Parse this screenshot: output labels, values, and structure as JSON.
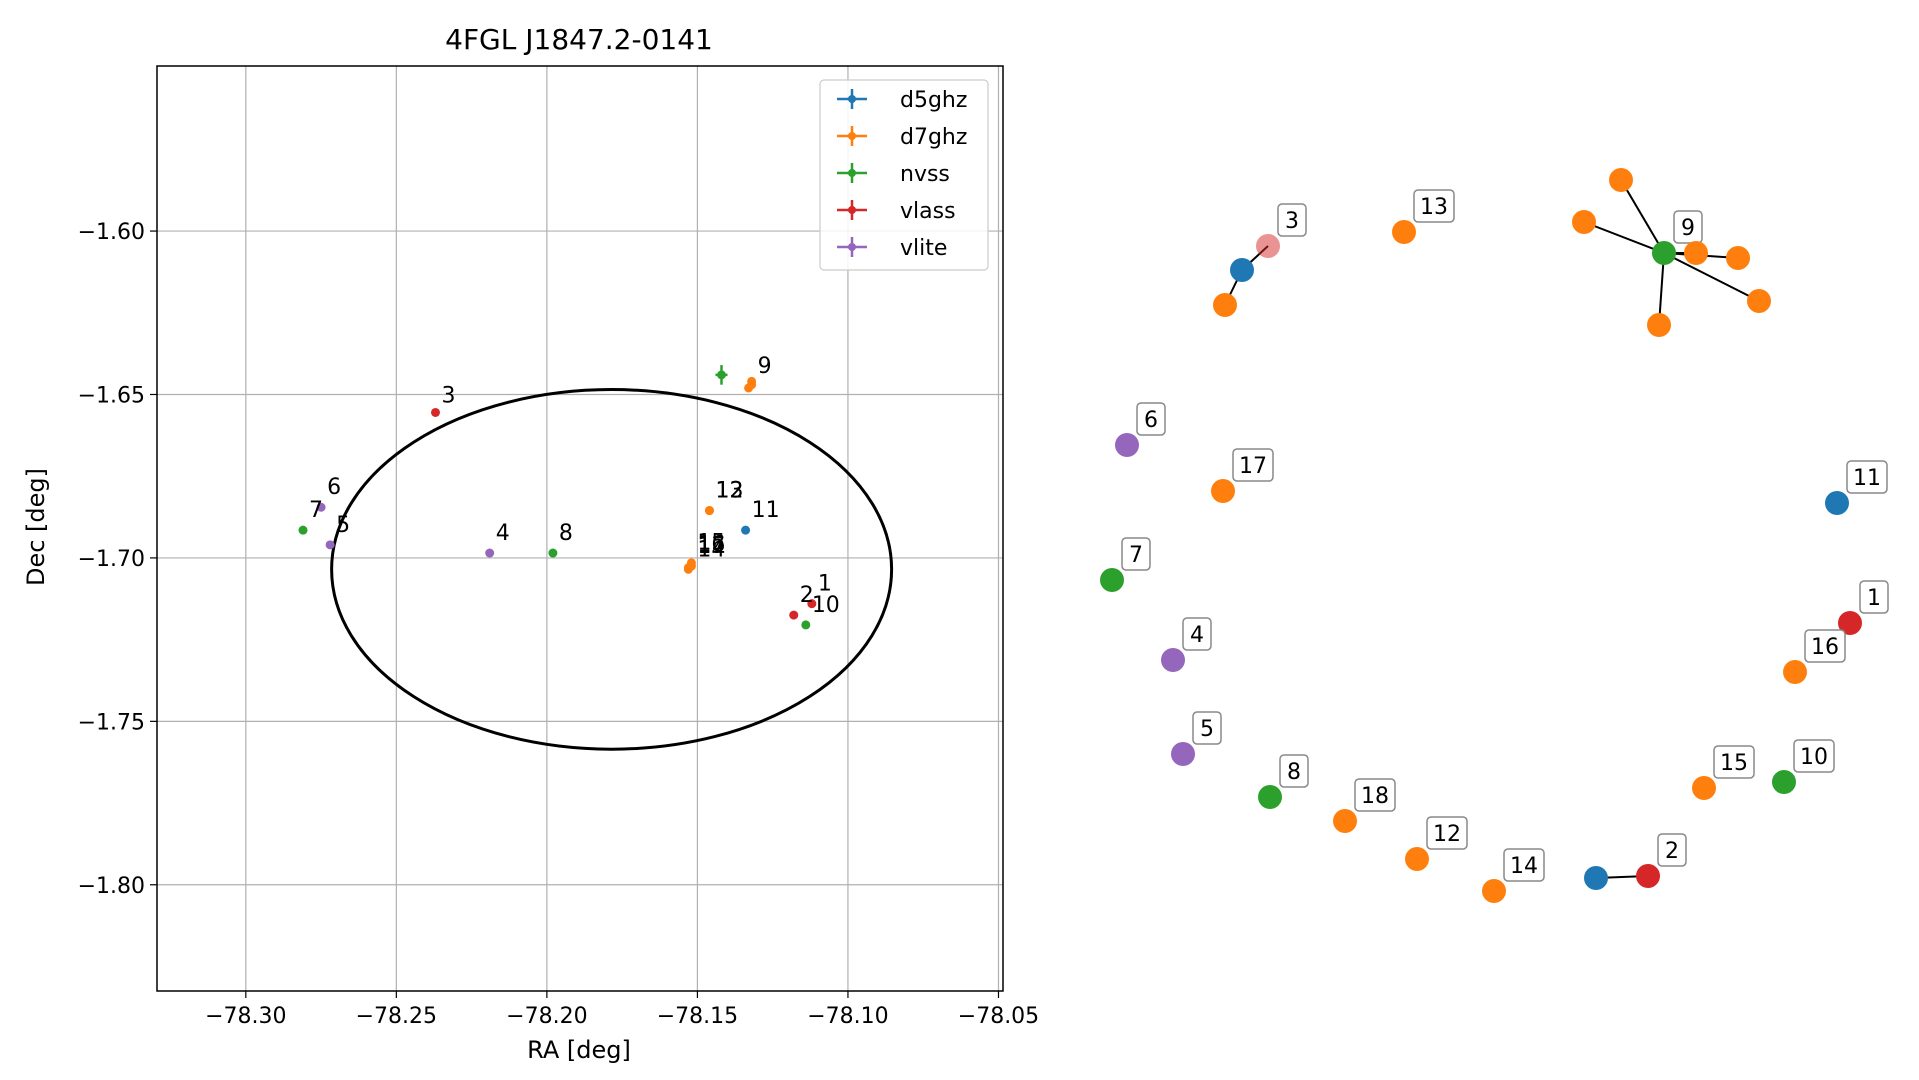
{
  "colors": {
    "d5ghz": "#1f77b4",
    "d7ghz": "#ff7f0e",
    "nvss": "#2ca02c",
    "vlass": "#d62728",
    "vlite": "#9467bd",
    "grid": "#b0b0b0",
    "axis": "#000000"
  },
  "chart_data": [
    {
      "type": "scatter",
      "title": "4FGL J1847.2-0141",
      "xlabel": "RA [deg]",
      "ylabel": "Dec [deg]",
      "xlim": [
        -78.3295,
        -78.0485
      ],
      "ylim": [
        -1.8325,
        -1.5495
      ],
      "xticks": [
        -78.3,
        -78.25,
        -78.2,
        -78.15,
        -78.1,
        -78.05
      ],
      "xtick_labels": [
        "−78.30",
        "−78.25",
        "−78.20",
        "−78.15",
        "−78.10",
        "−78.05"
      ],
      "yticks": [
        -1.6,
        -1.65,
        -1.7,
        -1.75,
        -1.8
      ],
      "ytick_labels": [
        "−1.60",
        "−1.65",
        "−1.70",
        "−1.75",
        "−1.80"
      ],
      "grid": true,
      "legend_position": "top-right",
      "legend": [
        "d5ghz",
        "d7ghz",
        "nvss",
        "vlass",
        "vlite"
      ],
      "ellipse": {
        "center": [
          -78.1785,
          -1.7035
        ],
        "semi_major_deg": 0.093,
        "semi_minor_deg": 0.055
      },
      "series": [
        {
          "name": "d5ghz",
          "points": [
            {
              "id": "11",
              "x": -78.134,
              "y": -1.6915
            }
          ]
        },
        {
          "name": "d7ghz",
          "points": [
            {
              "id": "9",
              "x": -78.132,
              "y": -1.646
            },
            {
              "id": "9",
              "x": -78.132,
              "y": -1.647
            },
            {
              "id": "9",
              "x": -78.133,
              "y": -1.648
            },
            {
              "id": "13",
              "x": -78.146,
              "y": -1.6855
            },
            {
              "id": "12",
              "x": -78.146,
              "y": -1.6855
            },
            {
              "id": "15",
              "x": -78.152,
              "y": -1.7015
            },
            {
              "id": "16",
              "x": -78.152,
              "y": -1.7025
            },
            {
              "id": "17",
              "x": -78.153,
              "y": -1.703
            },
            {
              "id": "14",
              "x": -78.153,
              "y": -1.7035
            }
          ]
        },
        {
          "name": "nvss",
          "points": [
            {
              "id": "9",
              "x": -78.142,
              "y": -1.644,
              "yerr": 0.003
            },
            {
              "id": "8",
              "x": -78.198,
              "y": -1.6985
            },
            {
              "id": "10",
              "x": -78.114,
              "y": -1.7205
            },
            {
              "id": "7",
              "x": -78.281,
              "y": -1.6915
            }
          ]
        },
        {
          "name": "vlass",
          "points": [
            {
              "id": "3",
              "x": -78.237,
              "y": -1.6555
            },
            {
              "id": "2",
              "x": -78.118,
              "y": -1.7175
            },
            {
              "id": "1",
              "x": -78.112,
              "y": -1.714
            }
          ]
        },
        {
          "name": "vlite",
          "points": [
            {
              "id": "6",
              "x": -78.275,
              "y": -1.6845
            },
            {
              "id": "5",
              "x": -78.272,
              "y": -1.696
            },
            {
              "id": "4",
              "x": -78.219,
              "y": -1.6985
            }
          ]
        }
      ],
      "point_labels": [
        {
          "text": "9",
          "x": -78.13,
          "y": -1.6435
        },
        {
          "text": "3",
          "x": -78.235,
          "y": -1.6525
        },
        {
          "text": "13",
          "x": -78.144,
          "y": -1.6815
        },
        {
          "text": "12",
          "x": -78.144,
          "y": -1.6815
        },
        {
          "text": "11",
          "x": -78.132,
          "y": -1.6875
        },
        {
          "text": "6",
          "x": -78.273,
          "y": -1.6805
        },
        {
          "text": "7",
          "x": -78.279,
          "y": -1.6875
        },
        {
          "text": "5",
          "x": -78.27,
          "y": -1.692
        },
        {
          "text": "4",
          "x": -78.217,
          "y": -1.6945
        },
        {
          "text": "8",
          "x": -78.196,
          "y": -1.6945
        },
        {
          "text": "15",
          "x": -78.15,
          "y": -1.6975
        },
        {
          "text": "16",
          "x": -78.15,
          "y": -1.698
        },
        {
          "text": "17",
          "x": -78.15,
          "y": -1.6985
        },
        {
          "text": "14",
          "x": -78.15,
          "y": -1.6995
        },
        {
          "text": "2",
          "x": -78.116,
          "y": -1.7135
        },
        {
          "text": "1",
          "x": -78.11,
          "y": -1.71
        },
        {
          "text": "10",
          "x": -78.112,
          "y": -1.7165
        }
      ]
    },
    {
      "type": "network",
      "nodes": [
        {
          "id": "3",
          "series": "vlass",
          "label": "3"
        },
        {
          "id": "d5a",
          "series": "d5ghz",
          "label": ""
        },
        {
          "id": "o1",
          "series": "d7ghz",
          "label": ""
        },
        {
          "id": "13",
          "series": "d7ghz",
          "label": "13"
        },
        {
          "id": "9",
          "series": "nvss",
          "label": "9"
        },
        {
          "id": "o2",
          "series": "d7ghz",
          "label": ""
        },
        {
          "id": "o3",
          "series": "d7ghz",
          "label": ""
        },
        {
          "id": "o4",
          "series": "d7ghz",
          "label": ""
        },
        {
          "id": "o5",
          "series": "d7ghz",
          "label": ""
        },
        {
          "id": "o6",
          "series": "d7ghz",
          "label": ""
        },
        {
          "id": "o7",
          "series": "d7ghz",
          "label": ""
        },
        {
          "id": "6",
          "series": "vlite",
          "label": "6"
        },
        {
          "id": "17",
          "series": "d7ghz",
          "label": "17"
        },
        {
          "id": "11",
          "series": "d5ghz",
          "label": "11"
        },
        {
          "id": "7",
          "series": "nvss",
          "label": "7"
        },
        {
          "id": "1",
          "series": "vlass",
          "label": "1"
        },
        {
          "id": "4",
          "series": "vlite",
          "label": "4"
        },
        {
          "id": "16",
          "series": "d7ghz",
          "label": "16"
        },
        {
          "id": "5",
          "series": "vlite",
          "label": "5"
        },
        {
          "id": "15",
          "series": "d7ghz",
          "label": "15"
        },
        {
          "id": "10",
          "series": "nvss",
          "label": "10"
        },
        {
          "id": "8",
          "series": "nvss",
          "label": "8"
        },
        {
          "id": "18",
          "series": "d7ghz",
          "label": "18"
        },
        {
          "id": "12",
          "series": "d7ghz",
          "label": "12"
        },
        {
          "id": "2",
          "series": "vlass",
          "label": "2"
        },
        {
          "id": "d5b",
          "series": "d5ghz",
          "label": ""
        },
        {
          "id": "14",
          "series": "d7ghz",
          "label": "14"
        }
      ],
      "edges": [
        [
          "d5a",
          "3"
        ],
        [
          "d5a",
          "o1"
        ],
        [
          "9",
          "o2"
        ],
        [
          "9",
          "o3"
        ],
        [
          "9",
          "o4"
        ],
        [
          "9",
          "o5"
        ],
        [
          "9",
          "o6"
        ],
        [
          "9",
          "o7"
        ],
        [
          "d5b",
          "2"
        ]
      ]
    }
  ]
}
